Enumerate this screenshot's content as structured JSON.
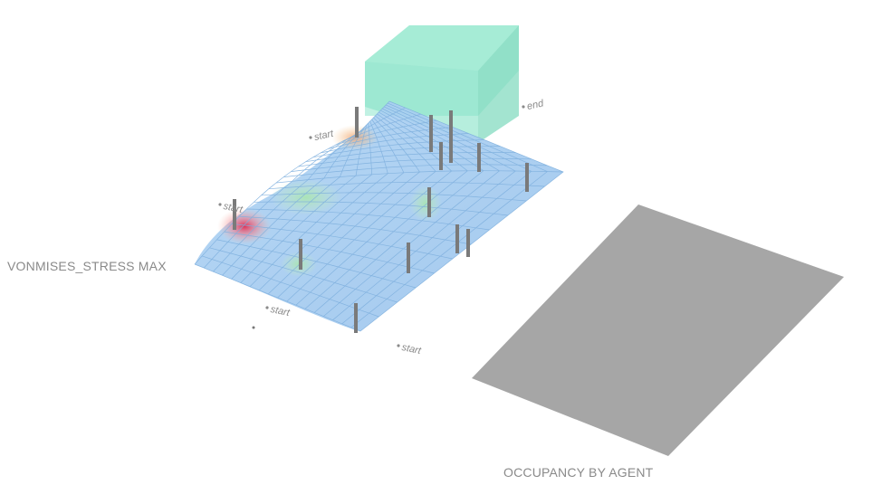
{
  "labels": {
    "stress_map": "VONMISES_STRESS MAX",
    "occupancy_map": "OCCUPANCY BY AGENT"
  },
  "markers": [
    {
      "id": "start-1",
      "text": "start"
    },
    {
      "id": "start-2",
      "text": "start"
    },
    {
      "id": "start-3",
      "text": "start"
    },
    {
      "id": "start-4",
      "text": "start"
    },
    {
      "id": "end-1",
      "text": "end"
    }
  ],
  "colors": {
    "surface_base": "#a8cdf0",
    "surface_grid": "#7fb0de",
    "stress_high": "#e0294f",
    "stress_mid": "#f2a470",
    "stress_low": "#b8e6b0",
    "block": "#7fe0c4",
    "columns": "#777777",
    "occupancy_plane": "#a6a6a6",
    "label_text": "#8a8a8a"
  }
}
